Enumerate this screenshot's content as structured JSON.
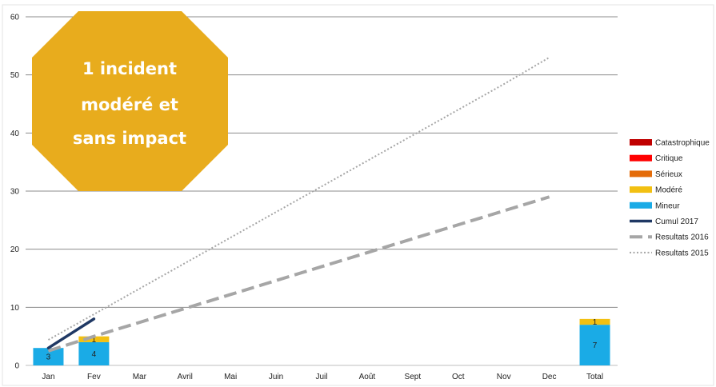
{
  "chart_data": {
    "type": "bar",
    "categories": [
      "Jan",
      "Fev",
      "Mar",
      "Avril",
      "Mai",
      "Juin",
      "Juil",
      "Août",
      "Sept",
      "Oct",
      "Nov",
      "Dec",
      "Total"
    ],
    "ylim": [
      0,
      60
    ],
    "yticks": [
      0,
      10,
      20,
      30,
      40,
      50,
      60
    ],
    "grid": true,
    "legend_position": "right",
    "stack_series": [
      {
        "name": "Catastrophique",
        "color": "#c00000",
        "values": [
          0,
          0,
          0,
          0,
          0,
          0,
          0,
          0,
          0,
          0,
          0,
          0,
          0
        ]
      },
      {
        "name": "Critique",
        "color": "#ff0000",
        "values": [
          0,
          0,
          0,
          0,
          0,
          0,
          0,
          0,
          0,
          0,
          0,
          0,
          0
        ]
      },
      {
        "name": "Sérieux",
        "color": "#e46c0a",
        "values": [
          0,
          0,
          0,
          0,
          0,
          0,
          0,
          0,
          0,
          0,
          0,
          0,
          0
        ]
      },
      {
        "name": "Modéré",
        "color": "#f2c012",
        "values": [
          0,
          1,
          0,
          0,
          0,
          0,
          0,
          0,
          0,
          0,
          0,
          0,
          1
        ]
      },
      {
        "name": "Mineur",
        "color": "#1aabe6",
        "values": [
          3,
          4,
          0,
          0,
          0,
          0,
          0,
          0,
          0,
          0,
          0,
          0,
          7
        ]
      }
    ],
    "line_series": [
      {
        "name": "Cumul 2017",
        "color": "#1f3864",
        "style": "solid",
        "values": [
          3,
          8
        ]
      },
      {
        "name": "Resultats 2016",
        "color": "#a6a6a6",
        "style": "dashed",
        "values": [
          2.5,
          5,
          7.4,
          9.8,
          12.2,
          14.6,
          17,
          19.4,
          21.8,
          24.2,
          26.6,
          29
        ]
      },
      {
        "name": "Resultats 2015",
        "color": "#a6a6a6",
        "style": "dotted",
        "values": [
          4.4,
          8.8,
          13.2,
          17.6,
          22,
          26.4,
          30.8,
          35.2,
          39.6,
          44,
          48.4,
          53
        ]
      }
    ],
    "legend": [
      "Catastrophique",
      "Critique",
      "Sérieux",
      "Modéré",
      "Mineur",
      "Cumul 2017",
      "Resultats 2016",
      "Resultats 2015"
    ],
    "annotation": {
      "text_lines": [
        "1 incident",
        "modéré et",
        "sans impact"
      ],
      "color": "#e8ac1d"
    }
  }
}
